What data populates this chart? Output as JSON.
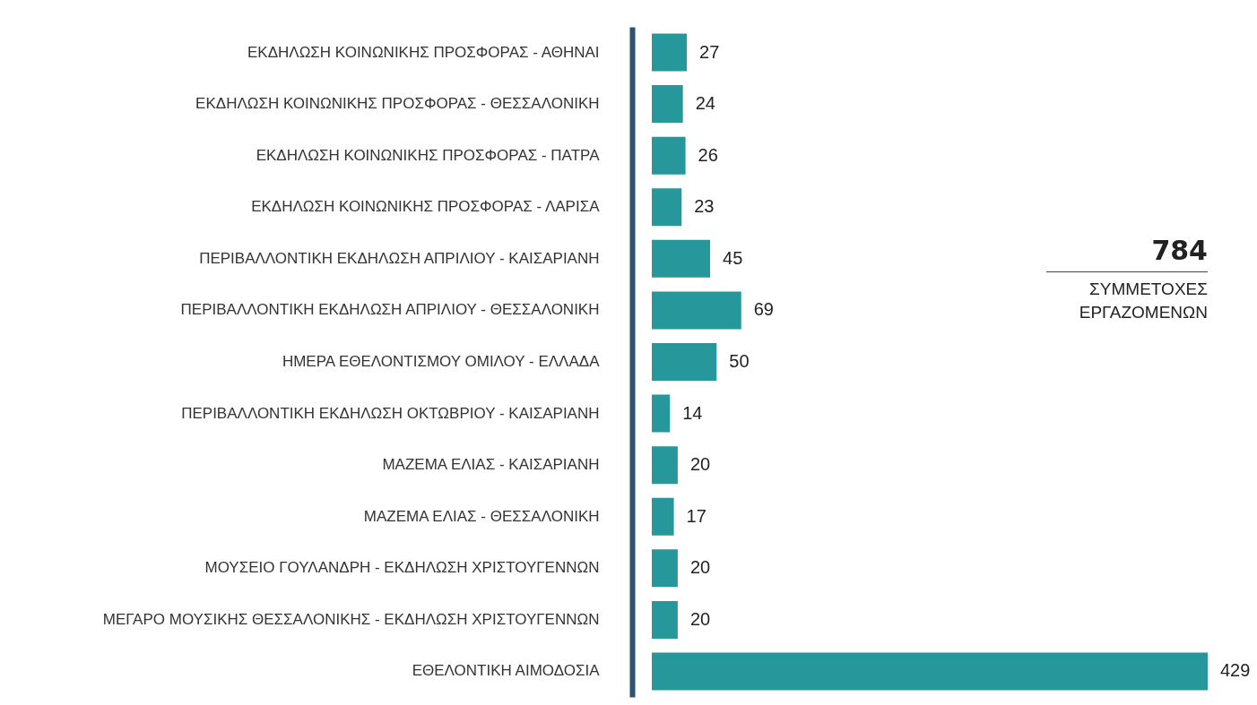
{
  "chart_data": {
    "type": "bar",
    "orientation": "horizontal",
    "data_labels": true,
    "categories": [
      "ΕΚΔΗΛΩΣΗ ΚΟΙΝΩΝΙΚΗΣ ΠΡΟΣΦΟΡΑΣ - ΑΘΗΝΑΙ",
      "ΕΚΔΗΛΩΣΗ ΚΟΙΝΩΝΙΚΗΣ ΠΡΟΣΦΟΡΑΣ - ΘΕΣΣΑΛΟΝΙΚΗ",
      "ΕΚΔΗΛΩΣΗ ΚΟΙΝΩΝΙΚΗΣ ΠΡΟΣΦΟΡΑΣ - ΠΑΤΡΑ",
      "ΕΚΔΗΛΩΣΗ ΚΟΙΝΩΝΙΚΗΣ ΠΡΟΣΦΟΡΑΣ - ΛΑΡΙΣΑ",
      "ΠΕΡΙΒΑΛΛΟΝΤΙΚΗ ΕΚΔΗΛΩΣΗ ΑΠΡΙΛΙΟΥ - ΚΑΙΣΑΡΙΑΝΗ",
      "ΠΕΡΙΒΑΛΛΟΝΤΙΚΗ ΕΚΔΗΛΩΣΗ ΑΠΡΙΛΙΟΥ - ΘΕΣΣΑΛΟΝΙΚΗ",
      "ΗΜΕΡΑ ΕΘΕΛΟΝΤΙΣΜΟΥ ΟΜΙΛΟΥ - ΕΛΛΑΔΑ",
      "ΠΕΡΙΒΑΛΛΟΝΤΙΚΗ ΕΚΔΗΛΩΣΗ ΟΚΤΩΒΡΙΟΥ - ΚΑΙΣΑΡΙΑΝΗ",
      "ΜΑΖΕΜΑ ΕΛΙΑΣ - ΚΑΙΣΑΡΙΑΝΗ",
      "ΜΑΖΕΜΑ ΕΛΙΑΣ - ΘΕΣΣΑΛΟΝΙΚΗ",
      "ΜΟΥΣΕΙΟ ΓΟΥΛΑΝΔΡΗ - ΕΚΔΗΛΩΣΗ ΧΡΙΣΤΟΥΓΕΝΝΩΝ",
      "ΜΕΓΑΡΟ ΜΟΥΣΙΚΗΣ ΘΕΣΣΑΛΟΝΙΚΗΣ - ΕΚΔΗΛΩΣΗ ΧΡΙΣΤΟΥΓΕΝΝΩΝ",
      "ΕΘΕΛΟΝΤΙΚΗ ΑΙΜΟΔΟΣΙΑ"
    ],
    "series": [
      {
        "color": "#26979a",
        "values": [
          27,
          24,
          26,
          23,
          45,
          69,
          50,
          14,
          20,
          17,
          20,
          20,
          429
        ]
      }
    ],
    "annotations": [
      "784",
      "ΣΥΜΜΕΤΟΧΕΣ ΕΡΓΑΖΟΜΕΝΩΝ"
    ]
  }
}
